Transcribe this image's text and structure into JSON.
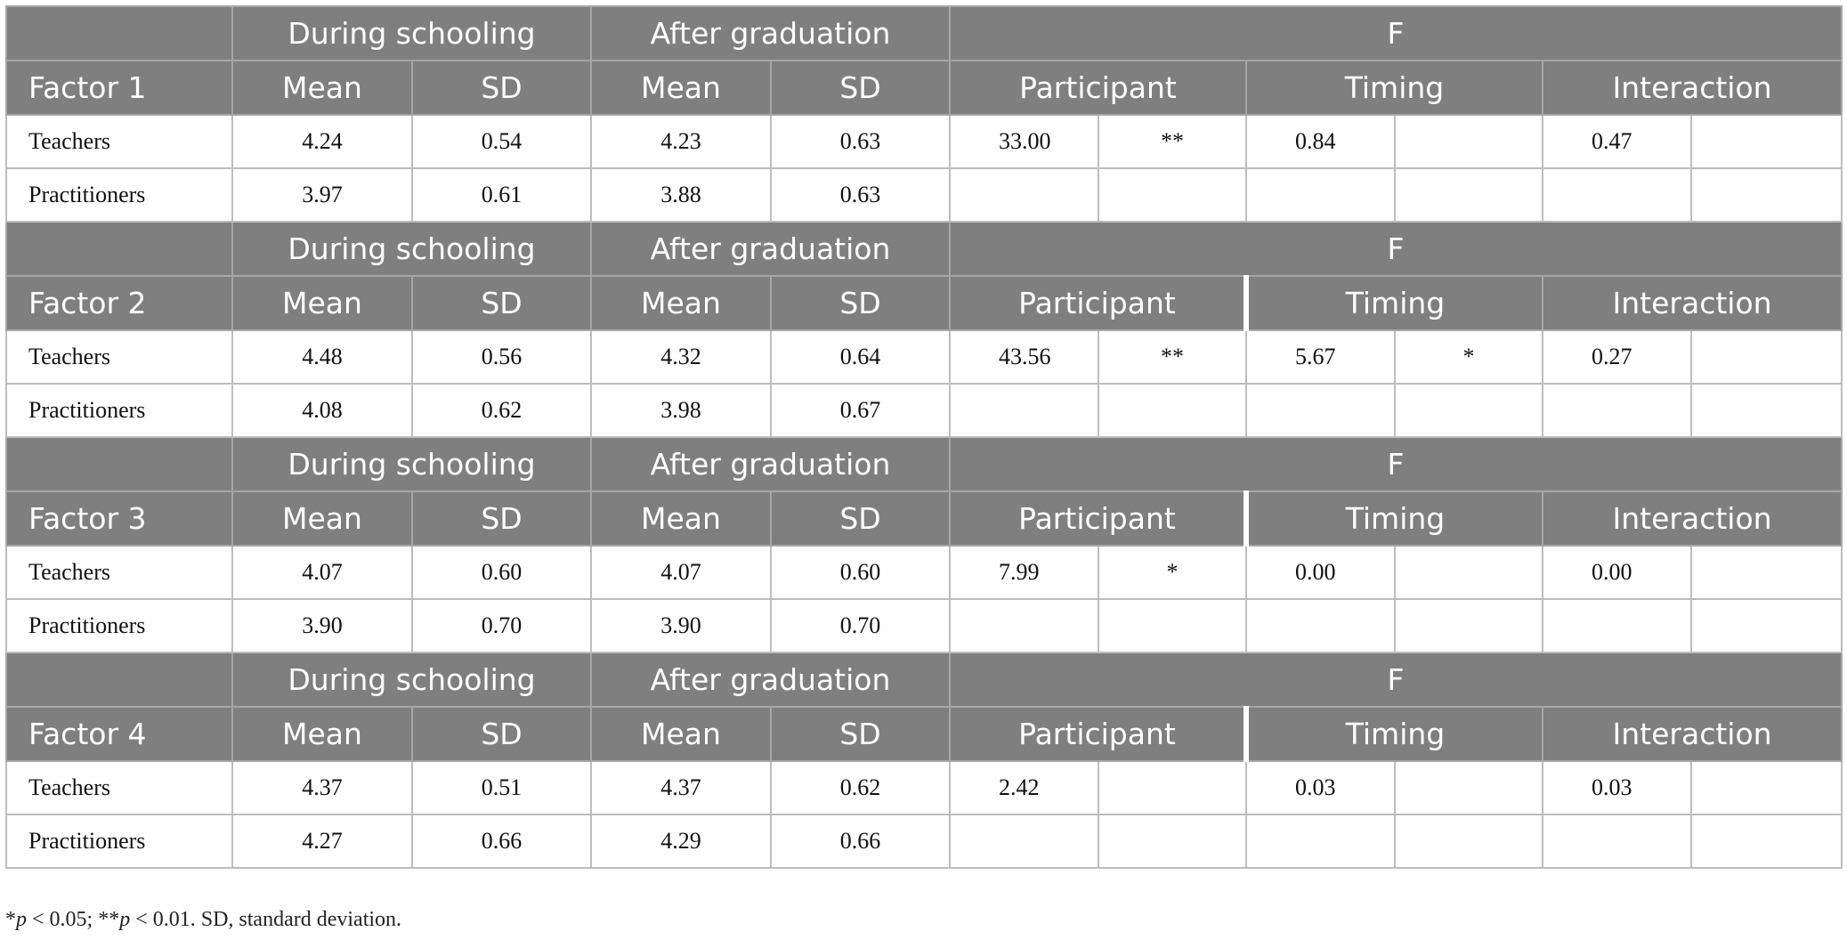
{
  "header_labels": {
    "during": "During schooling",
    "after": "After graduation",
    "f": "F",
    "mean": "Mean",
    "sd": "SD",
    "participant": "Participant",
    "timing": "Timing",
    "interaction": "Interaction"
  },
  "factors": [
    {
      "label": "Factor 1",
      "rows": [
        {
          "group": "Teachers",
          "during_mean": "4.24",
          "during_sd": "0.54",
          "after_mean": "4.23",
          "after_sd": "0.63",
          "participant_f": "33.00",
          "participant_sig": "**",
          "timing_f": "0.84",
          "timing_sig": "",
          "interaction_f": "0.47",
          "interaction_sig": ""
        },
        {
          "group": "Practitioners",
          "during_mean": "3.97",
          "during_sd": "0.61",
          "after_mean": "3.88",
          "after_sd": "0.63",
          "participant_f": "",
          "participant_sig": "",
          "timing_f": "",
          "timing_sig": "",
          "interaction_f": "",
          "interaction_sig": ""
        }
      ]
    },
    {
      "label": "Factor 2",
      "rows": [
        {
          "group": "Teachers",
          "during_mean": "4.48",
          "during_sd": "0.56",
          "after_mean": "4.32",
          "after_sd": "0.64",
          "participant_f": "43.56",
          "participant_sig": "**",
          "timing_f": "5.67",
          "timing_sig": "*",
          "interaction_f": "0.27",
          "interaction_sig": ""
        },
        {
          "group": "Practitioners",
          "during_mean": "4.08",
          "during_sd": "0.62",
          "after_mean": "3.98",
          "after_sd": "0.67",
          "participant_f": "",
          "participant_sig": "",
          "timing_f": "",
          "timing_sig": "",
          "interaction_f": "",
          "interaction_sig": ""
        }
      ]
    },
    {
      "label": "Factor 3",
      "rows": [
        {
          "group": "Teachers",
          "during_mean": "4.07",
          "during_sd": "0.60",
          "after_mean": "4.07",
          "after_sd": "0.60",
          "participant_f": "7.99",
          "participant_sig": "*",
          "timing_f": "0.00",
          "timing_sig": "",
          "interaction_f": "0.00",
          "interaction_sig": ""
        },
        {
          "group": "Practitioners",
          "during_mean": "3.90",
          "during_sd": "0.70",
          "after_mean": "3.90",
          "after_sd": "0.70",
          "participant_f": "",
          "participant_sig": "",
          "timing_f": "",
          "timing_sig": "",
          "interaction_f": "",
          "interaction_sig": ""
        }
      ]
    },
    {
      "label": "Factor 4",
      "rows": [
        {
          "group": "Teachers",
          "during_mean": "4.37",
          "during_sd": "0.51",
          "after_mean": "4.37",
          "after_sd": "0.62",
          "participant_f": "2.42",
          "participant_sig": "",
          "timing_f": "0.03",
          "timing_sig": "",
          "interaction_f": "0.03",
          "interaction_sig": ""
        },
        {
          "group": "Practitioners",
          "during_mean": "4.27",
          "during_sd": "0.66",
          "after_mean": "4.29",
          "after_sd": "0.66",
          "participant_f": "",
          "participant_sig": "",
          "timing_f": "",
          "timing_sig": "",
          "interaction_f": "",
          "interaction_sig": ""
        }
      ]
    }
  ],
  "footnote": {
    "star1": "*",
    "p1": "p",
    "text1": " < 0.05; ",
    "star2": "**",
    "p2": "p",
    "text2": " < 0.01. SD, standard deviation."
  }
}
